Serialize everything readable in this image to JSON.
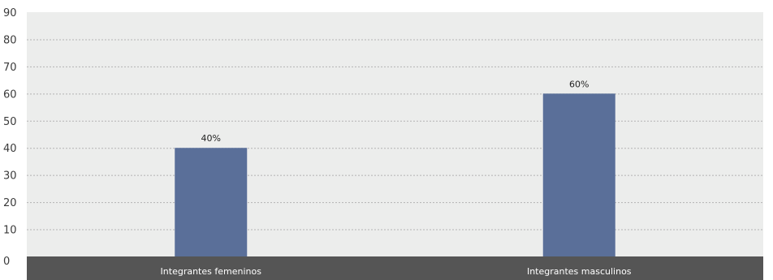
{
  "chart_data": {
    "type": "bar",
    "categories": [
      "Integrantes femeninos",
      "Integrantes masculinos"
    ],
    "values": [
      40,
      60
    ],
    "data_labels": [
      "40%",
      "60%"
    ],
    "ylim": [
      0,
      90
    ],
    "yticks": [
      "0",
      "10",
      "20",
      "30",
      "40",
      "50",
      "60",
      "70",
      "80",
      "90"
    ],
    "grid": true,
    "legend": "none",
    "colors": {
      "bar": "#5a6f99",
      "plot_background": "#ecedec",
      "category_band": "#555555"
    }
  }
}
